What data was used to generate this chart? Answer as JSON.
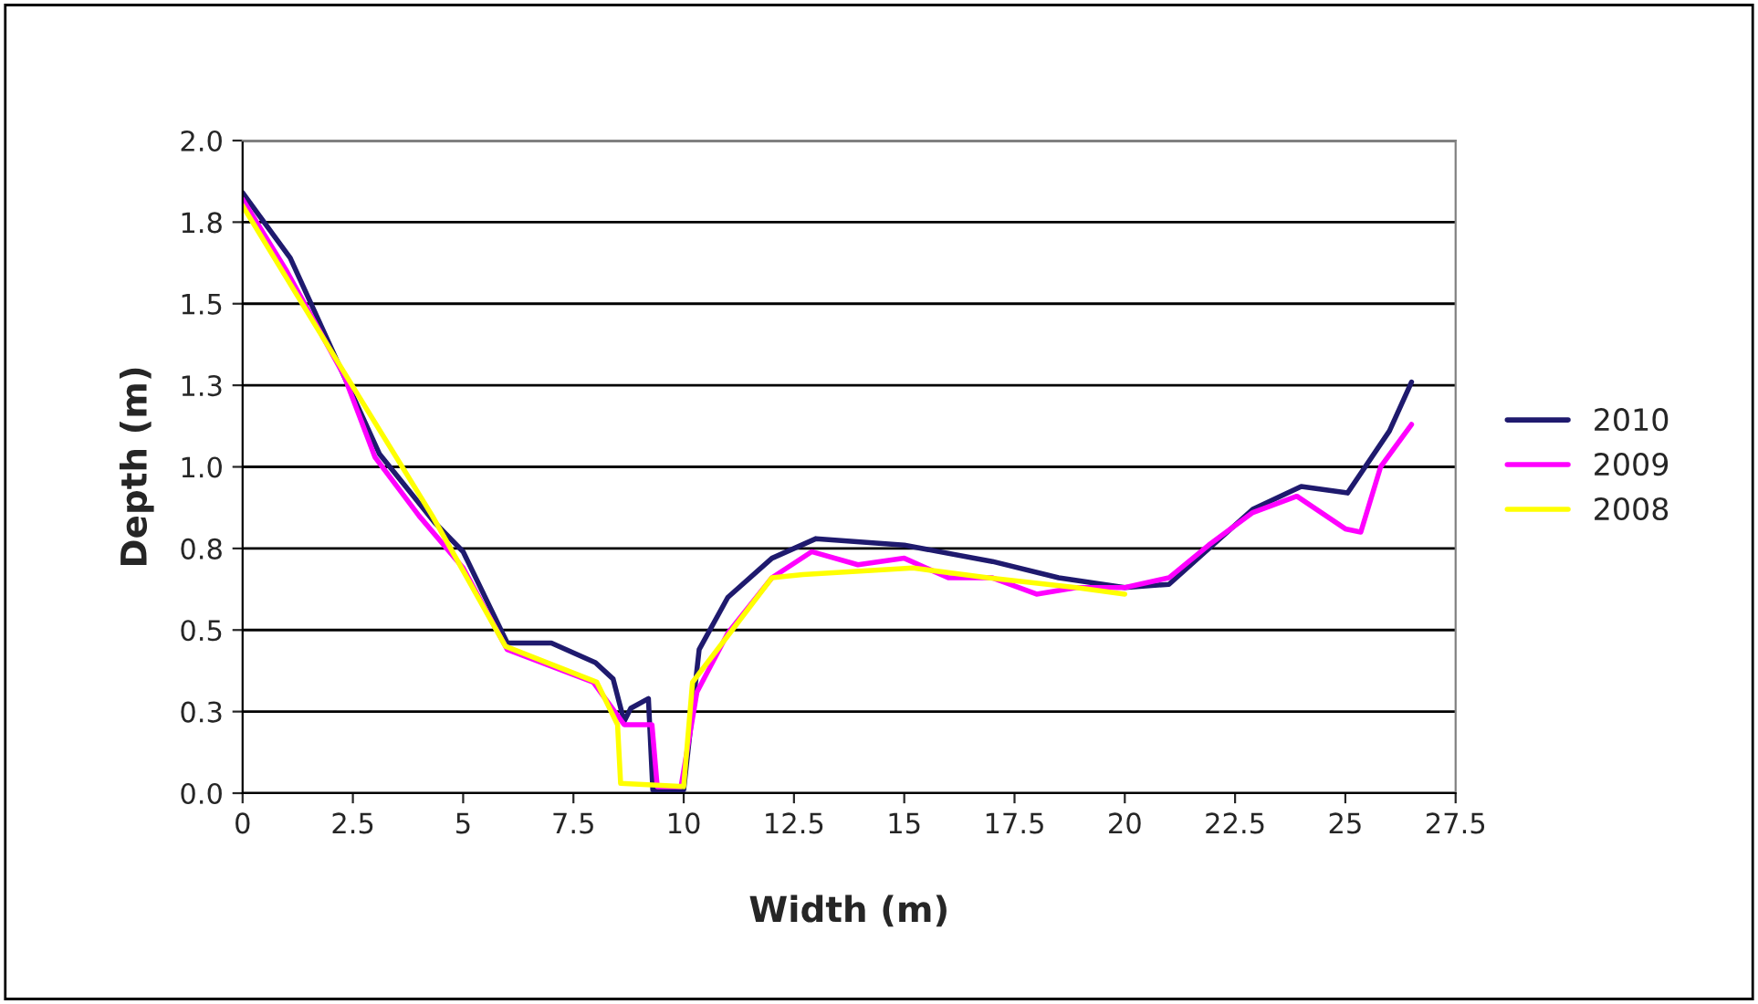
{
  "chart_data": {
    "type": "line",
    "xlabel": "Width (m)",
    "ylabel": "Depth (m)",
    "xlim": [
      0,
      27.5
    ],
    "ylim": [
      0,
      2.0
    ],
    "xticks": [
      0,
      2.5,
      5,
      7.5,
      10,
      12.5,
      15,
      17.5,
      20,
      22.5,
      25,
      27.5
    ],
    "yticks": [
      {
        "value": 0,
        "label": "0.0"
      },
      {
        "value": 0.25,
        "label": "0.3"
      },
      {
        "value": 0.5,
        "label": "0.5"
      },
      {
        "value": 0.75,
        "label": "0.8"
      },
      {
        "value": 1.0,
        "label": "1.0"
      },
      {
        "value": 1.25,
        "label": "1.3"
      },
      {
        "value": 1.5,
        "label": "1.5"
      },
      {
        "value": 1.75,
        "label": "1.8"
      },
      {
        "value": 2.0,
        "label": "2.0"
      }
    ],
    "grid": "y",
    "legend": "right",
    "marker": "none",
    "line_style": "solid",
    "series": [
      {
        "name": "2010",
        "color": "#1f1a6e",
        "x": [
          0,
          1.08,
          3.1,
          4.35,
          5,
          6,
          7,
          8,
          8.4,
          8.65,
          8.8,
          9.2,
          9.3,
          10,
          10.35,
          11,
          12,
          13,
          15,
          17,
          18.5,
          20,
          21,
          22.9,
          24,
          25.05,
          26,
          26.5
        ],
        "values": [
          1.84,
          1.64,
          1.04,
          0.83,
          0.74,
          0.46,
          0.46,
          0.4,
          0.35,
          0.22,
          0.26,
          0.29,
          0.01,
          0.01,
          0.44,
          0.6,
          0.72,
          0.78,
          0.76,
          0.71,
          0.66,
          0.63,
          0.64,
          0.87,
          0.94,
          0.92,
          1.11,
          1.26
        ]
      },
      {
        "name": "2009",
        "color": "#ff00ff",
        "x": [
          0,
          1,
          2.3,
          3,
          4,
          5,
          6,
          7.95,
          8.65,
          9.28,
          9.4,
          9.94,
          10.3,
          11,
          12,
          12.9,
          13.95,
          15,
          16,
          17,
          18,
          18.9,
          20,
          21,
          21.9,
          22.9,
          23.9,
          25,
          25.35,
          25.8,
          26.5
        ],
        "values": [
          1.82,
          1.6,
          1.28,
          1.03,
          0.85,
          0.69,
          0.44,
          0.34,
          0.21,
          0.21,
          0.02,
          0.02,
          0.31,
          0.49,
          0.66,
          0.74,
          0.7,
          0.72,
          0.66,
          0.66,
          0.61,
          0.63,
          0.63,
          0.66,
          0.76,
          0.86,
          0.91,
          0.81,
          0.8,
          1.0,
          1.13
        ]
      },
      {
        "name": "2008",
        "color": "#ffff00",
        "x": [
          0,
          2.3,
          4.3,
          5.96,
          8.03,
          8.5,
          8.57,
          10.0,
          10.2,
          12,
          12.7,
          15.2,
          16.9,
          18.9,
          20
        ],
        "values": [
          1.8,
          1.29,
          0.85,
          0.45,
          0.34,
          0.21,
          0.03,
          0.02,
          0.34,
          0.66,
          0.67,
          0.69,
          0.66,
          0.63,
          0.61
        ]
      }
    ]
  }
}
